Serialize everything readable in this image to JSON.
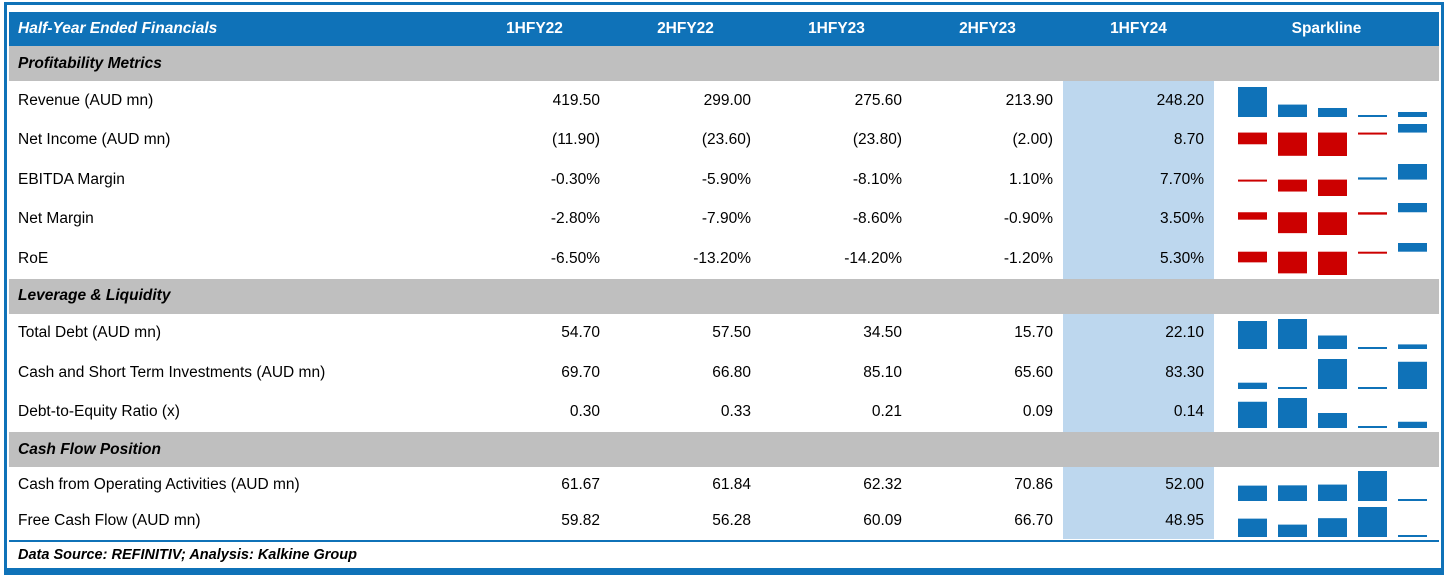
{
  "colors": {
    "header_blue": "#0f72b8",
    "section_gray": "#bfbfbf",
    "highlight_blue": "#bdd7ee",
    "spark_positive": "#0f72b8",
    "spark_negative": "#cc0000",
    "header_text": "#ffffff",
    "body_text": "#000000"
  },
  "chart_data": {
    "type": "table",
    "title": "Half-Year Ended Financials",
    "columns": [
      "1HFY22",
      "2HFY22",
      "1HFY23",
      "2HFY23",
      "1HFY24"
    ],
    "sparkline_header": "Sparkline",
    "highlight_column": "1HFY24",
    "sparkline_style": "column sparkline, min-max scaled per row, axis at zero for mixed-sign rows, blue positive / red negative",
    "sections": [
      {
        "title": "Profitability Metrics",
        "rows": [
          {
            "label": "Revenue (AUD mn)",
            "display": [
              "419.50",
              "299.00",
              "275.60",
              "213.90",
              "248.20"
            ],
            "values": [
              419.5,
              299.0,
              275.6,
              213.9,
              248.2
            ]
          },
          {
            "label": "Net Income (AUD mn)",
            "display": [
              "(11.90)",
              "(23.60)",
              "(23.80)",
              "(2.00)",
              "8.70"
            ],
            "values": [
              -11.9,
              -23.6,
              -23.8,
              -2.0,
              8.7
            ]
          },
          {
            "label": "EBITDA Margin",
            "display": [
              "-0.30%",
              "-5.90%",
              "-8.10%",
              "1.10%",
              "7.70%"
            ],
            "values": [
              -0.3,
              -5.9,
              -8.1,
              1.1,
              7.7
            ]
          },
          {
            "label": "Net Margin",
            "display": [
              "-2.80%",
              "-7.90%",
              "-8.60%",
              "-0.90%",
              "3.50%"
            ],
            "values": [
              -2.8,
              -7.9,
              -8.6,
              -0.9,
              3.5
            ]
          },
          {
            "label": "RoE",
            "display": [
              "-6.50%",
              "-13.20%",
              "-14.20%",
              "-1.20%",
              "5.30%"
            ],
            "values": [
              -6.5,
              -13.2,
              -14.2,
              -1.2,
              5.3
            ]
          }
        ]
      },
      {
        "title": "Leverage & Liquidity",
        "rows": [
          {
            "label": "Total Debt (AUD mn)",
            "display": [
              "54.70",
              "57.50",
              "34.50",
              "15.70",
              "22.10"
            ],
            "values": [
              54.7,
              57.5,
              34.5,
              15.7,
              22.1
            ]
          },
          {
            "label": "Cash and Short Term Investments (AUD mn)",
            "display": [
              "69.70",
              "66.80",
              "85.10",
              "65.60",
              "83.30"
            ],
            "values": [
              69.7,
              66.8,
              85.1,
              65.6,
              83.3
            ]
          },
          {
            "label": "Debt-to-Equity Ratio (x)",
            "display": [
              "0.30",
              "0.33",
              "0.21",
              "0.09",
              "0.14"
            ],
            "values": [
              0.3,
              0.33,
              0.21,
              0.09,
              0.14
            ]
          }
        ]
      },
      {
        "title": "Cash Flow Position",
        "rows": [
          {
            "label": "Cash from Operating Activities (AUD mn)",
            "display": [
              "61.67",
              "61.84",
              "62.32",
              "70.86",
              "52.00"
            ],
            "values": [
              61.67,
              61.84,
              62.32,
              70.86,
              52.0
            ]
          },
          {
            "label": "Free Cash Flow (AUD mn)",
            "display": [
              "59.82",
              "56.28",
              "60.09",
              "66.70",
              "48.95"
            ],
            "values": [
              59.82,
              56.28,
              60.09,
              66.7,
              48.95
            ]
          }
        ]
      }
    ],
    "footnote": "Data Source: REFINITIV; Analysis: Kalkine Group"
  }
}
